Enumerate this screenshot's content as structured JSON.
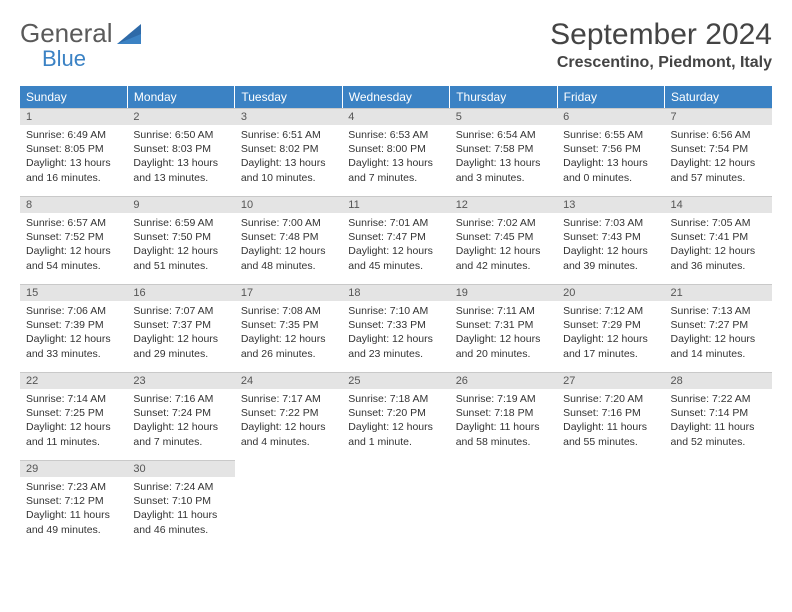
{
  "brand": {
    "part1": "General",
    "part2": "Blue"
  },
  "header": {
    "month_title": "September 2024",
    "location": "Crescentino, Piedmont, Italy"
  },
  "colors": {
    "header_bg": "#3b82c4",
    "header_text": "#ffffff",
    "daynum_bg": "#e4e4e4",
    "body_text": "#333333"
  },
  "day_names": [
    "Sunday",
    "Monday",
    "Tuesday",
    "Wednesday",
    "Thursday",
    "Friday",
    "Saturday"
  ],
  "weeks": [
    [
      {
        "n": "1",
        "sr": "Sunrise: 6:49 AM",
        "ss": "Sunset: 8:05 PM",
        "d1": "Daylight: 13 hours",
        "d2": "and 16 minutes."
      },
      {
        "n": "2",
        "sr": "Sunrise: 6:50 AM",
        "ss": "Sunset: 8:03 PM",
        "d1": "Daylight: 13 hours",
        "d2": "and 13 minutes."
      },
      {
        "n": "3",
        "sr": "Sunrise: 6:51 AM",
        "ss": "Sunset: 8:02 PM",
        "d1": "Daylight: 13 hours",
        "d2": "and 10 minutes."
      },
      {
        "n": "4",
        "sr": "Sunrise: 6:53 AM",
        "ss": "Sunset: 8:00 PM",
        "d1": "Daylight: 13 hours",
        "d2": "and 7 minutes."
      },
      {
        "n": "5",
        "sr": "Sunrise: 6:54 AM",
        "ss": "Sunset: 7:58 PM",
        "d1": "Daylight: 13 hours",
        "d2": "and 3 minutes."
      },
      {
        "n": "6",
        "sr": "Sunrise: 6:55 AM",
        "ss": "Sunset: 7:56 PM",
        "d1": "Daylight: 13 hours",
        "d2": "and 0 minutes."
      },
      {
        "n": "7",
        "sr": "Sunrise: 6:56 AM",
        "ss": "Sunset: 7:54 PM",
        "d1": "Daylight: 12 hours",
        "d2": "and 57 minutes."
      }
    ],
    [
      {
        "n": "8",
        "sr": "Sunrise: 6:57 AM",
        "ss": "Sunset: 7:52 PM",
        "d1": "Daylight: 12 hours",
        "d2": "and 54 minutes."
      },
      {
        "n": "9",
        "sr": "Sunrise: 6:59 AM",
        "ss": "Sunset: 7:50 PM",
        "d1": "Daylight: 12 hours",
        "d2": "and 51 minutes."
      },
      {
        "n": "10",
        "sr": "Sunrise: 7:00 AM",
        "ss": "Sunset: 7:48 PM",
        "d1": "Daylight: 12 hours",
        "d2": "and 48 minutes."
      },
      {
        "n": "11",
        "sr": "Sunrise: 7:01 AM",
        "ss": "Sunset: 7:47 PM",
        "d1": "Daylight: 12 hours",
        "d2": "and 45 minutes."
      },
      {
        "n": "12",
        "sr": "Sunrise: 7:02 AM",
        "ss": "Sunset: 7:45 PM",
        "d1": "Daylight: 12 hours",
        "d2": "and 42 minutes."
      },
      {
        "n": "13",
        "sr": "Sunrise: 7:03 AM",
        "ss": "Sunset: 7:43 PM",
        "d1": "Daylight: 12 hours",
        "d2": "and 39 minutes."
      },
      {
        "n": "14",
        "sr": "Sunrise: 7:05 AM",
        "ss": "Sunset: 7:41 PM",
        "d1": "Daylight: 12 hours",
        "d2": "and 36 minutes."
      }
    ],
    [
      {
        "n": "15",
        "sr": "Sunrise: 7:06 AM",
        "ss": "Sunset: 7:39 PM",
        "d1": "Daylight: 12 hours",
        "d2": "and 33 minutes."
      },
      {
        "n": "16",
        "sr": "Sunrise: 7:07 AM",
        "ss": "Sunset: 7:37 PM",
        "d1": "Daylight: 12 hours",
        "d2": "and 29 minutes."
      },
      {
        "n": "17",
        "sr": "Sunrise: 7:08 AM",
        "ss": "Sunset: 7:35 PM",
        "d1": "Daylight: 12 hours",
        "d2": "and 26 minutes."
      },
      {
        "n": "18",
        "sr": "Sunrise: 7:10 AM",
        "ss": "Sunset: 7:33 PM",
        "d1": "Daylight: 12 hours",
        "d2": "and 23 minutes."
      },
      {
        "n": "19",
        "sr": "Sunrise: 7:11 AM",
        "ss": "Sunset: 7:31 PM",
        "d1": "Daylight: 12 hours",
        "d2": "and 20 minutes."
      },
      {
        "n": "20",
        "sr": "Sunrise: 7:12 AM",
        "ss": "Sunset: 7:29 PM",
        "d1": "Daylight: 12 hours",
        "d2": "and 17 minutes."
      },
      {
        "n": "21",
        "sr": "Sunrise: 7:13 AM",
        "ss": "Sunset: 7:27 PM",
        "d1": "Daylight: 12 hours",
        "d2": "and 14 minutes."
      }
    ],
    [
      {
        "n": "22",
        "sr": "Sunrise: 7:14 AM",
        "ss": "Sunset: 7:25 PM",
        "d1": "Daylight: 12 hours",
        "d2": "and 11 minutes."
      },
      {
        "n": "23",
        "sr": "Sunrise: 7:16 AM",
        "ss": "Sunset: 7:24 PM",
        "d1": "Daylight: 12 hours",
        "d2": "and 7 minutes."
      },
      {
        "n": "24",
        "sr": "Sunrise: 7:17 AM",
        "ss": "Sunset: 7:22 PM",
        "d1": "Daylight: 12 hours",
        "d2": "and 4 minutes."
      },
      {
        "n": "25",
        "sr": "Sunrise: 7:18 AM",
        "ss": "Sunset: 7:20 PM",
        "d1": "Daylight: 12 hours",
        "d2": "and 1 minute."
      },
      {
        "n": "26",
        "sr": "Sunrise: 7:19 AM",
        "ss": "Sunset: 7:18 PM",
        "d1": "Daylight: 11 hours",
        "d2": "and 58 minutes."
      },
      {
        "n": "27",
        "sr": "Sunrise: 7:20 AM",
        "ss": "Sunset: 7:16 PM",
        "d1": "Daylight: 11 hours",
        "d2": "and 55 minutes."
      },
      {
        "n": "28",
        "sr": "Sunrise: 7:22 AM",
        "ss": "Sunset: 7:14 PM",
        "d1": "Daylight: 11 hours",
        "d2": "and 52 minutes."
      }
    ],
    [
      {
        "n": "29",
        "sr": "Sunrise: 7:23 AM",
        "ss": "Sunset: 7:12 PM",
        "d1": "Daylight: 11 hours",
        "d2": "and 49 minutes."
      },
      {
        "n": "30",
        "sr": "Sunrise: 7:24 AM",
        "ss": "Sunset: 7:10 PM",
        "d1": "Daylight: 11 hours",
        "d2": "and 46 minutes."
      },
      {
        "empty": true
      },
      {
        "empty": true
      },
      {
        "empty": true
      },
      {
        "empty": true
      },
      {
        "empty": true
      }
    ]
  ]
}
